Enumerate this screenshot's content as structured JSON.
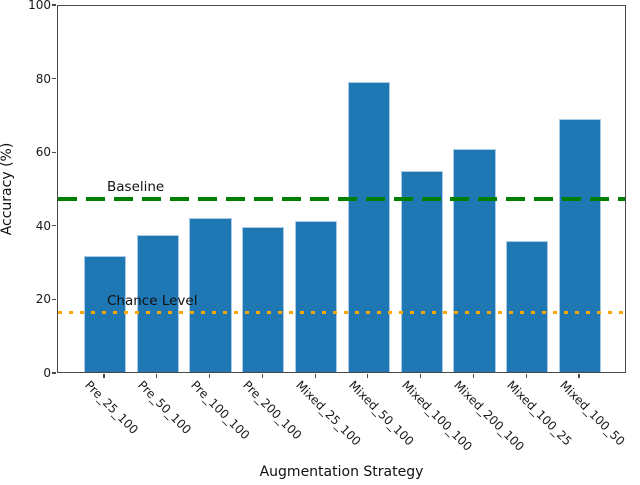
{
  "chart_data": {
    "type": "bar",
    "title": "",
    "xlabel": "Augmentation Strategy",
    "ylabel": "Accuracy (%)",
    "categories": [
      "Pre_25_100",
      "Pre_50_100",
      "Pre_100_100",
      "Pre_200_100",
      "Mixed_25_100",
      "Mixed_50_100",
      "Mixed_100_100",
      "Mixed_200_100",
      "Mixed_100_25",
      "Mixed_100_50"
    ],
    "values": [
      31.5,
      37.2,
      41.8,
      39.5,
      41.0,
      78.8,
      54.6,
      60.7,
      35.7,
      68.8
    ],
    "ylim": [
      0,
      100
    ],
    "yticks": [
      0,
      20,
      40,
      60,
      80,
      100
    ],
    "x_tick_rotation_deg": 45,
    "grid": false,
    "legend_position": "none",
    "bar_color": "#1f77b4",
    "bar_edge_color": "#a9cbe5",
    "axis_color": "#4a4a4a",
    "reference_lines": [
      {
        "label": "Baseline",
        "value": 47.5,
        "color": "#008000",
        "style": "dashed"
      },
      {
        "label": "Chance Level",
        "value": 16.7,
        "color": "#ffa500",
        "style": "dotted"
      }
    ]
  }
}
